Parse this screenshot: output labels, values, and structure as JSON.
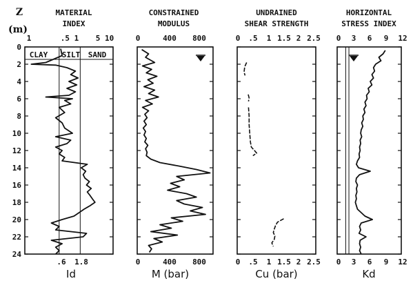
{
  "depth_axis": {
    "label": "Z",
    "unit": "(m)",
    "ticks": [
      0,
      2,
      4,
      6,
      8,
      10,
      12,
      14,
      16,
      18,
      20,
      22,
      24
    ],
    "range": [
      0,
      24
    ],
    "inverted": true
  },
  "panels": [
    {
      "key": "id",
      "title_lines": [
        "MATERIAL",
        "INDEX"
      ],
      "xlabel": "Id",
      "top_ticks": [
        "1",
        ".5 1",
        "5 10"
      ],
      "bottom_ticks": [
        ".6",
        "1.8"
      ],
      "zones": [
        "CLAY",
        "SILT",
        "SAND"
      ]
    },
    {
      "key": "m",
      "title_lines": [
        "CONSTRAINED",
        "MODULUS"
      ],
      "xlabel": "M (bar)",
      "top_ticks": [
        "0",
        "400",
        "800"
      ],
      "bottom_ticks": [
        "0",
        "400",
        "800"
      ]
    },
    {
      "key": "cu",
      "title_lines": [
        "UNDRAINED",
        "SHEAR STRENGTH"
      ],
      "xlabel": "Cu (bar)",
      "top_ticks": [
        "0",
        ".5",
        "1",
        "1.5",
        "2",
        "2.5"
      ],
      "bottom_ticks": [
        "0",
        ".5",
        "1",
        "1.5",
        "2",
        "2.5"
      ]
    },
    {
      "key": "kd",
      "title_lines": [
        "HORIZONTAL",
        "STRESS INDEX"
      ],
      "xlabel": "Kd",
      "top_ticks": [
        "0",
        "3",
        "6",
        "9",
        "12"
      ],
      "bottom_ticks": [
        "0",
        "3",
        "6",
        "9",
        "12"
      ]
    }
  ],
  "chart_data": [
    {
      "type": "line",
      "title": "MATERIAL INDEX",
      "xlabel": "Id",
      "ylabel": "Z (m)",
      "xscale": "log",
      "xlim": [
        0.1,
        10
      ],
      "ylim": [
        0,
        24
      ],
      "reference_lines_x": [
        0.6,
        1.8
      ],
      "zones": [
        "CLAY",
        "SILT",
        "SAND"
      ],
      "series": [
        {
          "depth": [
            0.2,
            1.0,
            1.8,
            2.0,
            2.1,
            2.4,
            2.8,
            3.2,
            3.6,
            4.0,
            4.4,
            4.8,
            5.2,
            5.6,
            5.8,
            6.0,
            6.2,
            6.6,
            7.0,
            7.6,
            8.2,
            8.8,
            9.4,
            10.0,
            10.4,
            10.8,
            11.2,
            11.6,
            12.0,
            12.4,
            12.8,
            13.2,
            13.6,
            14.0,
            14.4,
            14.8,
            15.2,
            15.6,
            16.0,
            16.4,
            16.8,
            17.2,
            17.6,
            18.0,
            18.4,
            18.8,
            19.2,
            19.6,
            20.0,
            20.4,
            20.8,
            21.2,
            21.6,
            22.0,
            22.4,
            22.8,
            23.2,
            23.6,
            24.0
          ],
          "values": [
            0.65,
            0.7,
            0.3,
            0.14,
            0.5,
            0.9,
            1.4,
            1.1,
            1.6,
            1.0,
            1.5,
            0.9,
            1.4,
            1.0,
            0.3,
            1.2,
            0.8,
            1.1,
            0.6,
            0.8,
            0.5,
            0.7,
            0.8,
            1.2,
            0.5,
            1.1,
            0.9,
            0.5,
            0.7,
            0.6,
            0.8,
            0.7,
            2.6,
            1.9,
            2.4,
            2.1,
            2.3,
            2.9,
            2.5,
            3.2,
            2.6,
            3.0,
            3.4,
            3.9,
            3.0,
            2.2,
            1.7,
            1.3,
            0.7,
            0.4,
            0.6,
            0.5,
            2.5,
            2.1,
            0.4,
            0.7,
            0.5,
            0.6,
            0.5
          ]
        }
      ]
    },
    {
      "type": "line",
      "title": "CONSTRAINED MODULUS",
      "xlabel": "M (bar)",
      "ylabel": "Z (m)",
      "xlim": [
        0,
        1000
      ],
      "ylim": [
        0,
        24
      ],
      "water_table_depth": 1.6,
      "series": [
        {
          "depth": [
            0.3,
            0.8,
            1.2,
            1.8,
            2.2,
            2.6,
            3.0,
            3.4,
            3.8,
            4.2,
            4.6,
            5.0,
            5.4,
            5.8,
            6.2,
            6.6,
            7.0,
            7.4,
            7.8,
            8.2,
            8.6,
            9.0,
            9.4,
            9.8,
            10.2,
            10.6,
            11.0,
            11.4,
            11.8,
            12.2,
            12.6,
            13.0,
            13.4,
            13.8,
            14.2,
            14.6,
            15.0,
            15.4,
            15.8,
            16.2,
            16.6,
            17.0,
            17.4,
            17.8,
            18.2,
            18.6,
            19.0,
            19.4,
            19.8,
            20.2,
            20.6,
            21.0,
            21.4,
            21.8,
            22.2,
            22.6,
            23.0,
            23.4,
            23.8
          ],
          "values": [
            60,
            150,
            110,
            230,
            70,
            190,
            120,
            260,
            140,
            210,
            90,
            230,
            150,
            280,
            110,
            200,
            70,
            150,
            100,
            130,
            90,
            120,
            80,
            110,
            90,
            120,
            100,
            140,
            110,
            130,
            120,
            180,
            300,
            550,
            780,
            960,
            520,
            620,
            440,
            560,
            400,
            650,
            780,
            520,
            620,
            860,
            700,
            900,
            450,
            600,
            300,
            450,
            180,
            530,
            220,
            330,
            150,
            190,
            160
          ]
        }
      ]
    },
    {
      "type": "line",
      "title": "UNDRAINED SHEAR STRENGTH",
      "xlabel": "Cu (bar)",
      "ylabel": "Z (m)",
      "xlim": [
        0,
        2.5
      ],
      "ylim": [
        0,
        24
      ],
      "series": [
        {
          "depth": [
            1.8,
            2.3,
            2.9,
            3.3
          ],
          "values": [
            0.3,
            0.24,
            0.22,
            0.25
          ]
        },
        {
          "depth": [
            5.5,
            5.9,
            6.3
          ],
          "values": [
            0.35,
            0.38,
            0.36
          ]
        },
        {
          "depth": [
            7.0,
            8.0,
            9.0,
            10.0,
            11.0,
            11.6,
            12.0,
            12.3,
            12.6
          ],
          "values": [
            0.36,
            0.38,
            0.38,
            0.4,
            0.42,
            0.45,
            0.55,
            0.62,
            0.5
          ]
        },
        {
          "depth": [
            19.9,
            20.3,
            20.7,
            21.1,
            21.5,
            21.9,
            22.3,
            22.7,
            23.1
          ],
          "values": [
            1.48,
            1.28,
            1.22,
            1.18,
            1.15,
            1.2,
            1.18,
            1.1,
            1.15
          ]
        }
      ]
    },
    {
      "type": "line",
      "title": "HORIZONTAL STRESS INDEX",
      "xlabel": "Kd",
      "ylabel": "Z (m)",
      "xlim": [
        0,
        12
      ],
      "ylim": [
        0,
        24
      ],
      "reference_lines_x": [
        1.6,
        2.2
      ],
      "water_table_depth": 1.6,
      "series": [
        {
          "depth": [
            0.4,
            0.8,
            1.2,
            1.6,
            2.0,
            2.4,
            2.8,
            3.2,
            3.6,
            4.0,
            4.4,
            4.8,
            5.2,
            5.6,
            6.0,
            6.4,
            6.8,
            7.2,
            7.6,
            8.0,
            8.4,
            8.8,
            9.2,
            9.6,
            10.0,
            10.4,
            10.8,
            11.2,
            11.6,
            12.0,
            12.4,
            12.8,
            13.2,
            13.6,
            14.0,
            14.4,
            14.8,
            15.2,
            15.6,
            16.0,
            16.4,
            16.8,
            17.2,
            17.6,
            18.0,
            18.4,
            18.8,
            19.2,
            19.6,
            20.0,
            20.4,
            20.8,
            21.2,
            21.6,
            22.0,
            22.4,
            22.8,
            23.2,
            23.6,
            24.0
          ],
          "values": [
            9.0,
            8.6,
            7.8,
            8.2,
            7.2,
            6.8,
            7.0,
            6.5,
            6.8,
            6.2,
            6.5,
            5.8,
            6.0,
            5.5,
            5.6,
            5.2,
            5.4,
            5.0,
            5.2,
            4.8,
            4.9,
            4.6,
            4.8,
            4.5,
            4.4,
            4.6,
            4.3,
            4.4,
            4.2,
            4.3,
            4.1,
            4.2,
            3.8,
            3.6,
            4.0,
            6.2,
            4.2,
            3.6,
            3.5,
            3.8,
            3.6,
            3.7,
            3.5,
            3.6,
            3.4,
            3.6,
            3.8,
            4.5,
            5.2,
            6.6,
            4.5,
            4.2,
            4.4,
            4.1,
            5.4,
            4.3,
            4.2,
            4.4,
            4.2,
            4.5
          ]
        }
      ]
    }
  ]
}
